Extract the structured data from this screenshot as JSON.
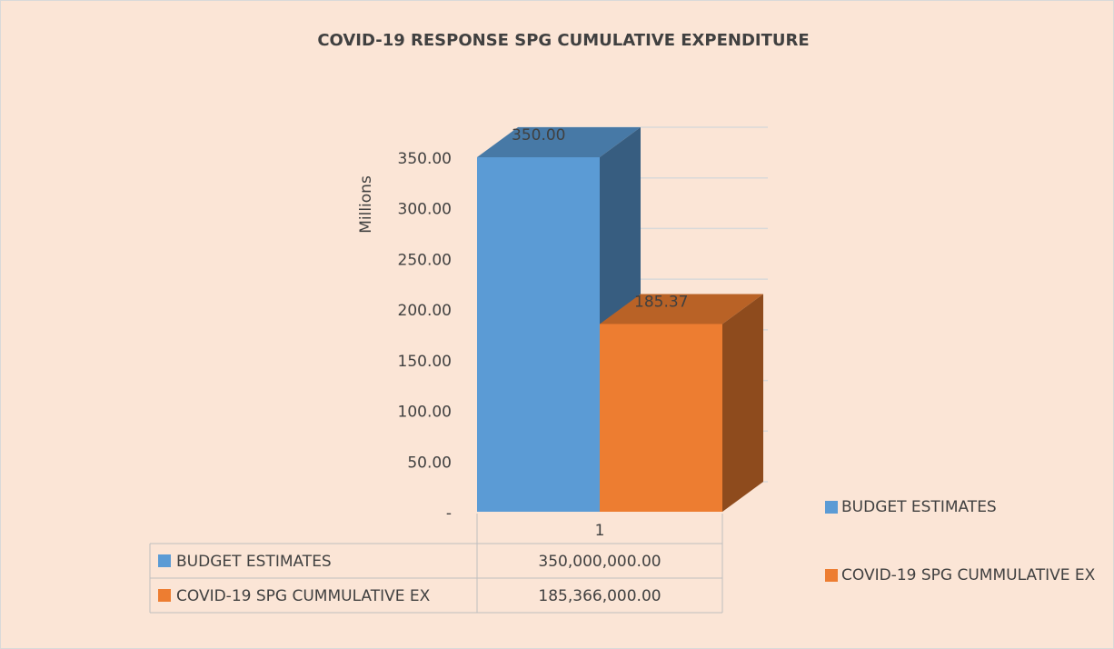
{
  "chart_data": {
    "type": "bar3d",
    "title": "COVID-19 RESPONSE SPG CUMULATIVE EXPENDITURE",
    "y_label": "Millions",
    "categories": [
      "1"
    ],
    "series": [
      {
        "name": "BUDGET ESTIMATES",
        "color": "#5b9bd5",
        "values": [
          350
        ],
        "value_labels": [
          "350.00"
        ],
        "table_labels": [
          "350,000,000.00"
        ]
      },
      {
        "name": "COVID-19 SPG CUMMULATIVE EX",
        "color": "#ed7d31",
        "values": [
          185.366
        ],
        "value_labels": [
          "185.37"
        ],
        "table_labels": [
          "185,366,000.00"
        ]
      }
    ],
    "ylim": [
      0,
      350
    ],
    "yticks": [
      {
        "value": 0,
        "label": "-"
      },
      {
        "value": 50,
        "label": "50.00"
      },
      {
        "value": 100,
        "label": "100.00"
      },
      {
        "value": 150,
        "label": "150.00"
      },
      {
        "value": 200,
        "label": "200.00"
      },
      {
        "value": 250,
        "label": "250.00"
      },
      {
        "value": 300,
        "label": "300.00"
      },
      {
        "value": 350,
        "label": "350.00"
      }
    ],
    "grid": true,
    "legend": "right"
  }
}
